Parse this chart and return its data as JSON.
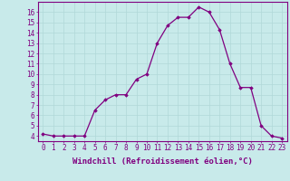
{
  "x": [
    0,
    1,
    2,
    3,
    4,
    5,
    6,
    7,
    8,
    9,
    10,
    11,
    12,
    13,
    14,
    15,
    16,
    17,
    18,
    19,
    20,
    21,
    22,
    23
  ],
  "y": [
    4.2,
    4.0,
    4.0,
    4.0,
    4.0,
    6.5,
    7.5,
    8.0,
    8.0,
    9.5,
    10.0,
    13.0,
    14.7,
    15.5,
    15.5,
    16.5,
    16.0,
    14.3,
    11.0,
    8.7,
    8.7,
    5.0,
    4.0,
    3.8
  ],
  "line_color": "#800080",
  "marker": "D",
  "marker_size": 1.8,
  "linewidth": 0.9,
  "xlabel": "Windchill (Refroidissement éolien,°C)",
  "xlim": [
    -0.5,
    23.5
  ],
  "ylim": [
    3.5,
    17.0
  ],
  "xtick_labels": [
    "0",
    "1",
    "2",
    "3",
    "4",
    "5",
    "6",
    "7",
    "8",
    "9",
    "10",
    "11",
    "12",
    "13",
    "14",
    "15",
    "16",
    "17",
    "18",
    "19",
    "20",
    "21",
    "22",
    "23"
  ],
  "ytick_values": [
    4,
    5,
    6,
    7,
    8,
    9,
    10,
    11,
    12,
    13,
    14,
    15,
    16
  ],
  "grid_color": "#b0d8d8",
  "bg_color": "#c8eaea",
  "tick_color": "#800080",
  "label_color": "#800080",
  "xlabel_fontsize": 6.5,
  "tick_fontsize": 5.5
}
